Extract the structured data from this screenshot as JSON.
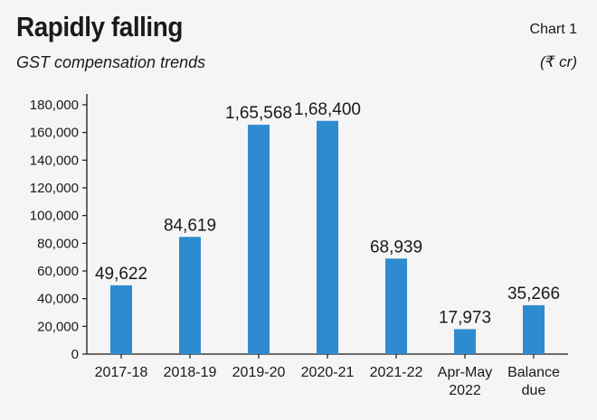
{
  "header": {
    "title": "Rapidly falling",
    "chart_label": "Chart 1",
    "subtitle": "GST compensation trends",
    "unit": "(₹ cr)"
  },
  "colors": {
    "bar": "#2f8bd0",
    "axis": "#1a1a1a",
    "background": "#f5f5f5"
  },
  "chart_data": {
    "type": "bar",
    "categories": [
      [
        "2017-18"
      ],
      [
        "2018-19"
      ],
      [
        "2019-20"
      ],
      [
        "2020-21"
      ],
      [
        "2021-22"
      ],
      [
        "Apr-May",
        "2022"
      ],
      [
        "Balance",
        "due"
      ]
    ],
    "values": [
      49622,
      84619,
      165568,
      168400,
      68939,
      17973,
      35266
    ],
    "data_labels": [
      "49,622",
      "84,619",
      "1,65,568",
      "1,68,400",
      "68,939",
      "17,973",
      "35,266"
    ],
    "yticks": [
      0,
      20000,
      40000,
      60000,
      80000,
      100000,
      120000,
      140000,
      160000,
      180000
    ],
    "ytick_labels": [
      "0",
      "20,000",
      "40,000",
      "60,000",
      "80,000",
      "1,00,000",
      "1,20,000",
      "1,40,000",
      "1,60,000",
      "1,80,000"
    ],
    "ytick_labels_display": [
      "0",
      "20,000",
      "40,000",
      "60,000",
      "80,000",
      "100,000",
      "120,000",
      "140,000",
      "160,000",
      "180,000"
    ],
    "ylim": [
      0,
      180000
    ],
    "grid": false,
    "legend": "none"
  }
}
